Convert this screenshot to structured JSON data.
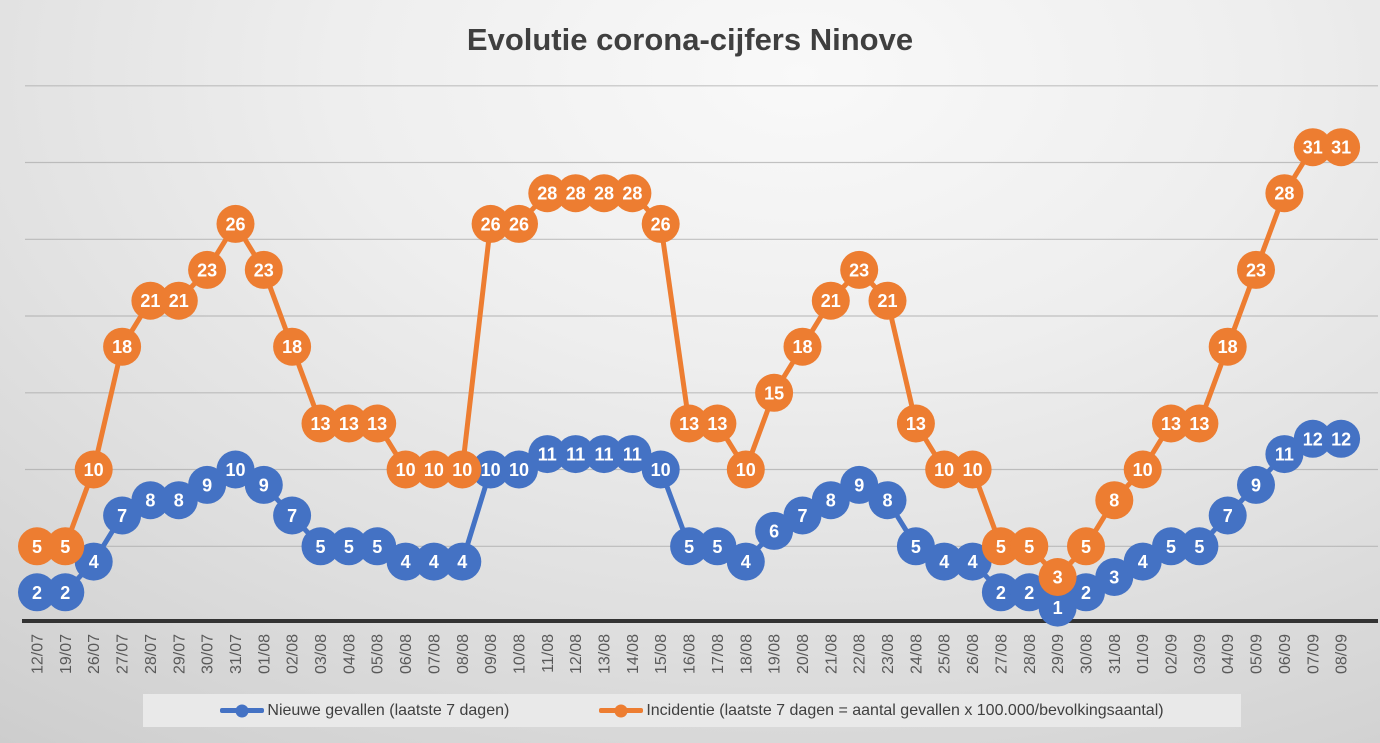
{
  "title": "Evolutie corona-cijfers Ninove",
  "colors": {
    "blue": "#4472C4",
    "orange": "#ED7D31",
    "title_text": "#3F3F3F",
    "axis_text": "#595959",
    "data_label_text": "#FFFFFF",
    "gridline": "#A6A6A6",
    "axis_line": "#333333",
    "legend_bg": "#E9E9E9"
  },
  "legend": {
    "position": "bottom",
    "items": [
      {
        "label": "Nieuwe gevallen (laatste 7 dagen)",
        "color_key": "blue"
      },
      {
        "label": "Incidentie (laatste 7 dagen = aantal gevallen x 100.000/bevolkingsaantal)",
        "color_key": "orange"
      }
    ]
  },
  "chart_data": {
    "type": "line",
    "title": "Evolutie corona-cijfers Ninove",
    "xlabel": "",
    "ylabel": "",
    "ylim": [
      0,
      35
    ],
    "gridline_step": 5,
    "grid": true,
    "data_labels": true,
    "marker_style": "filled-circle",
    "x_label_rotation": -90,
    "legend_position": "bottom",
    "categories": [
      "12/07",
      "19/07",
      "26/07",
      "27/07",
      "28/07",
      "29/07",
      "30/07",
      "31/07",
      "01/08",
      "02/08",
      "03/08",
      "04/08",
      "05/08",
      "06/08",
      "07/08",
      "08/08",
      "09/08",
      "10/08",
      "11/08",
      "12/08",
      "13/08",
      "14/08",
      "15/08",
      "16/08",
      "17/08",
      "18/08",
      "19/08",
      "20/08",
      "21/08",
      "22/08",
      "23/08",
      "24/08",
      "25/08",
      "26/08",
      "27/08",
      "28/08",
      "29/09",
      "30/08",
      "31/08",
      "01/09",
      "02/09",
      "03/09",
      "04/09",
      "05/09",
      "06/09",
      "07/09",
      "08/09"
    ],
    "series": [
      {
        "name": "Nieuwe gevallen (laatste 7 dagen)",
        "color_key": "blue",
        "values": [
          2,
          2,
          4,
          7,
          8,
          8,
          9,
          10,
          9,
          7,
          5,
          5,
          5,
          4,
          4,
          4,
          10,
          10,
          11,
          11,
          11,
          11,
          10,
          5,
          5,
          4,
          6,
          7,
          8,
          9,
          8,
          5,
          4,
          4,
          2,
          2,
          1,
          2,
          3,
          4,
          5,
          5,
          7,
          9,
          11,
          12,
          12
        ]
      },
      {
        "name": "Incidentie (laatste 7 dagen = aantal gevallen x 100.000/bevolkingsaantal)",
        "color_key": "orange",
        "values": [
          5,
          5,
          10,
          18,
          21,
          21,
          23,
          26,
          23,
          18,
          13,
          13,
          13,
          10,
          10,
          10,
          26,
          26,
          28,
          28,
          28,
          28,
          26,
          13,
          13,
          10,
          15,
          18,
          21,
          23,
          21,
          13,
          10,
          10,
          5,
          5,
          3,
          5,
          8,
          10,
          13,
          13,
          18,
          23,
          28,
          31,
          31
        ]
      }
    ]
  }
}
